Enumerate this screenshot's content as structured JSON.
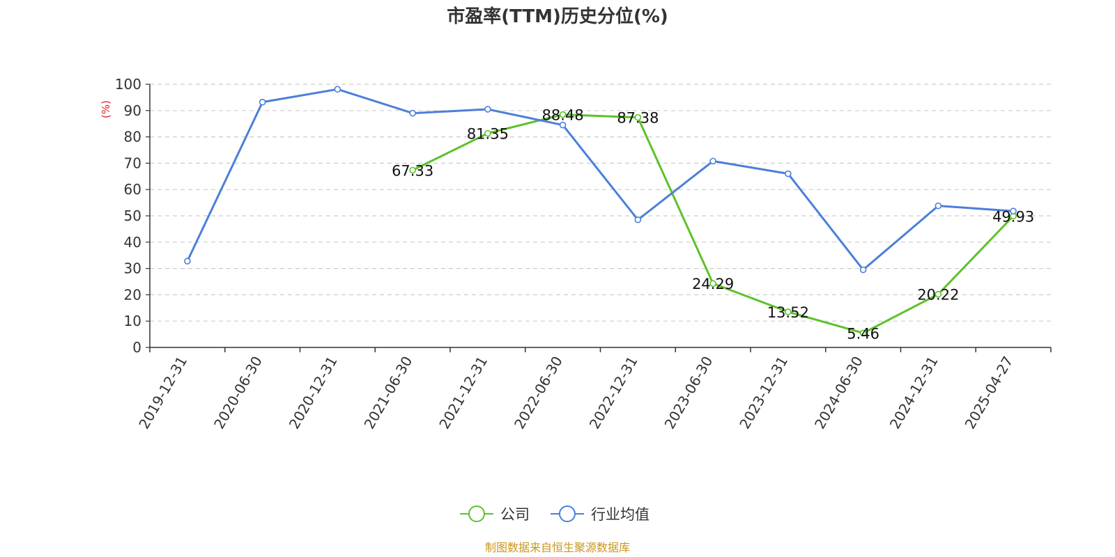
{
  "chart_data": {
    "type": "line",
    "title": "市盈率(TTM)历史分位(%)",
    "ylabel": "(%)",
    "ylim": [
      0,
      100
    ],
    "yticks": [
      0,
      10,
      20,
      30,
      40,
      50,
      60,
      70,
      80,
      90,
      100
    ],
    "categories": [
      "2019-12-31",
      "2020-06-30",
      "2020-12-31",
      "2021-06-30",
      "2021-12-31",
      "2022-06-30",
      "2022-12-31",
      "2023-06-30",
      "2023-12-31",
      "2024-06-30",
      "2024-12-31",
      "2025-04-27"
    ],
    "grid": true,
    "legend_position": "bottom",
    "series": [
      {
        "name": "公司",
        "color": "#5cc22a",
        "values": [
          null,
          null,
          null,
          67.33,
          81.35,
          88.48,
          87.38,
          24.29,
          13.52,
          5.46,
          20.22,
          49.93
        ],
        "labels": [
          "",
          "",
          "",
          "67.33",
          "81.35",
          "88.48",
          "87.38",
          "24.29",
          "13.52",
          "5.46",
          "20.22",
          "49.93"
        ]
      },
      {
        "name": "行业均值",
        "color": "#4c7fd8",
        "values": [
          32.8,
          93.2,
          98.1,
          89.0,
          90.5,
          84.5,
          48.5,
          70.8,
          66.0,
          29.5,
          53.8,
          51.8
        ]
      }
    ],
    "source": "制图数据来自恒生聚源数据库",
    "source_color": "#c8961e",
    "axis_unit_color": "#e02020"
  }
}
